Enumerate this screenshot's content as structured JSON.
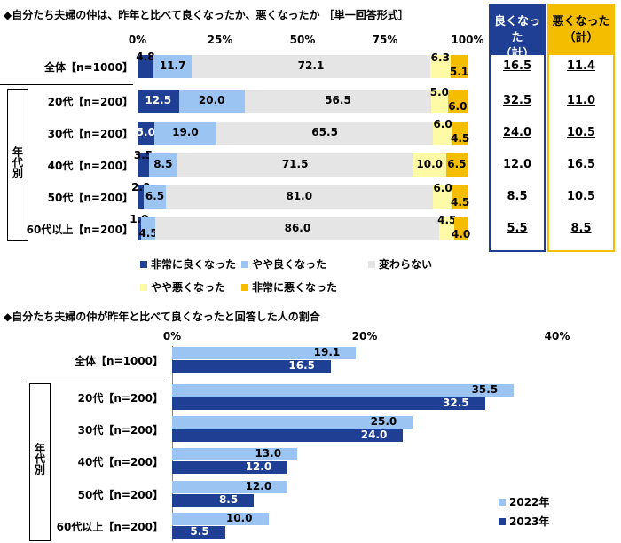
{
  "chart_data": [
    {
      "type": "bar",
      "stacked": true,
      "orientation": "horizontal",
      "title": "◆自分たち夫婦の仲は、昨年と比べて良くなったか、悪くなったか ［単一回答形式］",
      "xlim": [
        0,
        100
      ],
      "xticks": [
        "0%",
        "25%",
        "50%",
        "75%",
        "100%"
      ],
      "group_label": "年代別",
      "categories": [
        "全体【n=1000】",
        "20代【n=200】",
        "30代【n=200】",
        "40代【n=200】",
        "50代【n=200】",
        "60代以上【n=200】"
      ],
      "series": [
        {
          "name": "非常に良くなった",
          "color": "#1f3f94",
          "values": [
            4.8,
            12.5,
            5.0,
            3.5,
            2.0,
            1.0
          ]
        },
        {
          "name": "やや良くなった",
          "color": "#9cc4f2",
          "values": [
            11.7,
            20.0,
            19.0,
            8.5,
            6.5,
            4.5
          ]
        },
        {
          "name": "変わらない",
          "color": "#e5e5e5",
          "values": [
            72.1,
            56.5,
            65.5,
            71.5,
            81.0,
            86.0
          ]
        },
        {
          "name": "やや悪くなった",
          "color": "#fffaa6",
          "values": [
            6.3,
            5.0,
            6.0,
            10.0,
            6.0,
            4.5
          ]
        },
        {
          "name": "非常に悪くなった",
          "color": "#f5bd00",
          "values": [
            5.1,
            6.0,
            4.5,
            6.5,
            4.5,
            4.0
          ]
        }
      ],
      "summary": {
        "good_header": [
          "良くなった",
          "（計）"
        ],
        "bad_header": [
          "悪くなった",
          "（計）"
        ],
        "good": [
          "16.5",
          "32.5",
          "24.0",
          "12.0",
          "8.5",
          "5.5"
        ],
        "bad": [
          "11.4",
          "11.0",
          "10.5",
          "16.5",
          "10.5",
          "8.5"
        ],
        "good_color": "#1f3f94",
        "bad_color": "#f5bd00"
      }
    },
    {
      "type": "bar",
      "orientation": "horizontal",
      "title": "◆自分たち夫婦の仲が昨年と比べて良くなったと回答した人の割合",
      "xlim": [
        0,
        40
      ],
      "xticks": [
        "0%",
        "20%",
        "40%"
      ],
      "group_label": "年代別",
      "categories": [
        "全体【n=1000】",
        "20代【n=200】",
        "30代【n=200】",
        "40代【n=200】",
        "50代【n=200】",
        "60代以上【n=200】"
      ],
      "series": [
        {
          "name": "2022年",
          "color": "#9cc4f2",
          "values": [
            19.1,
            35.5,
            25.0,
            13.0,
            12.0,
            10.0
          ]
        },
        {
          "name": "2023年",
          "color": "#1f3f94",
          "values": [
            16.5,
            32.5,
            24.0,
            12.0,
            8.5,
            5.5
          ]
        }
      ],
      "legend": "bottom-right"
    }
  ]
}
